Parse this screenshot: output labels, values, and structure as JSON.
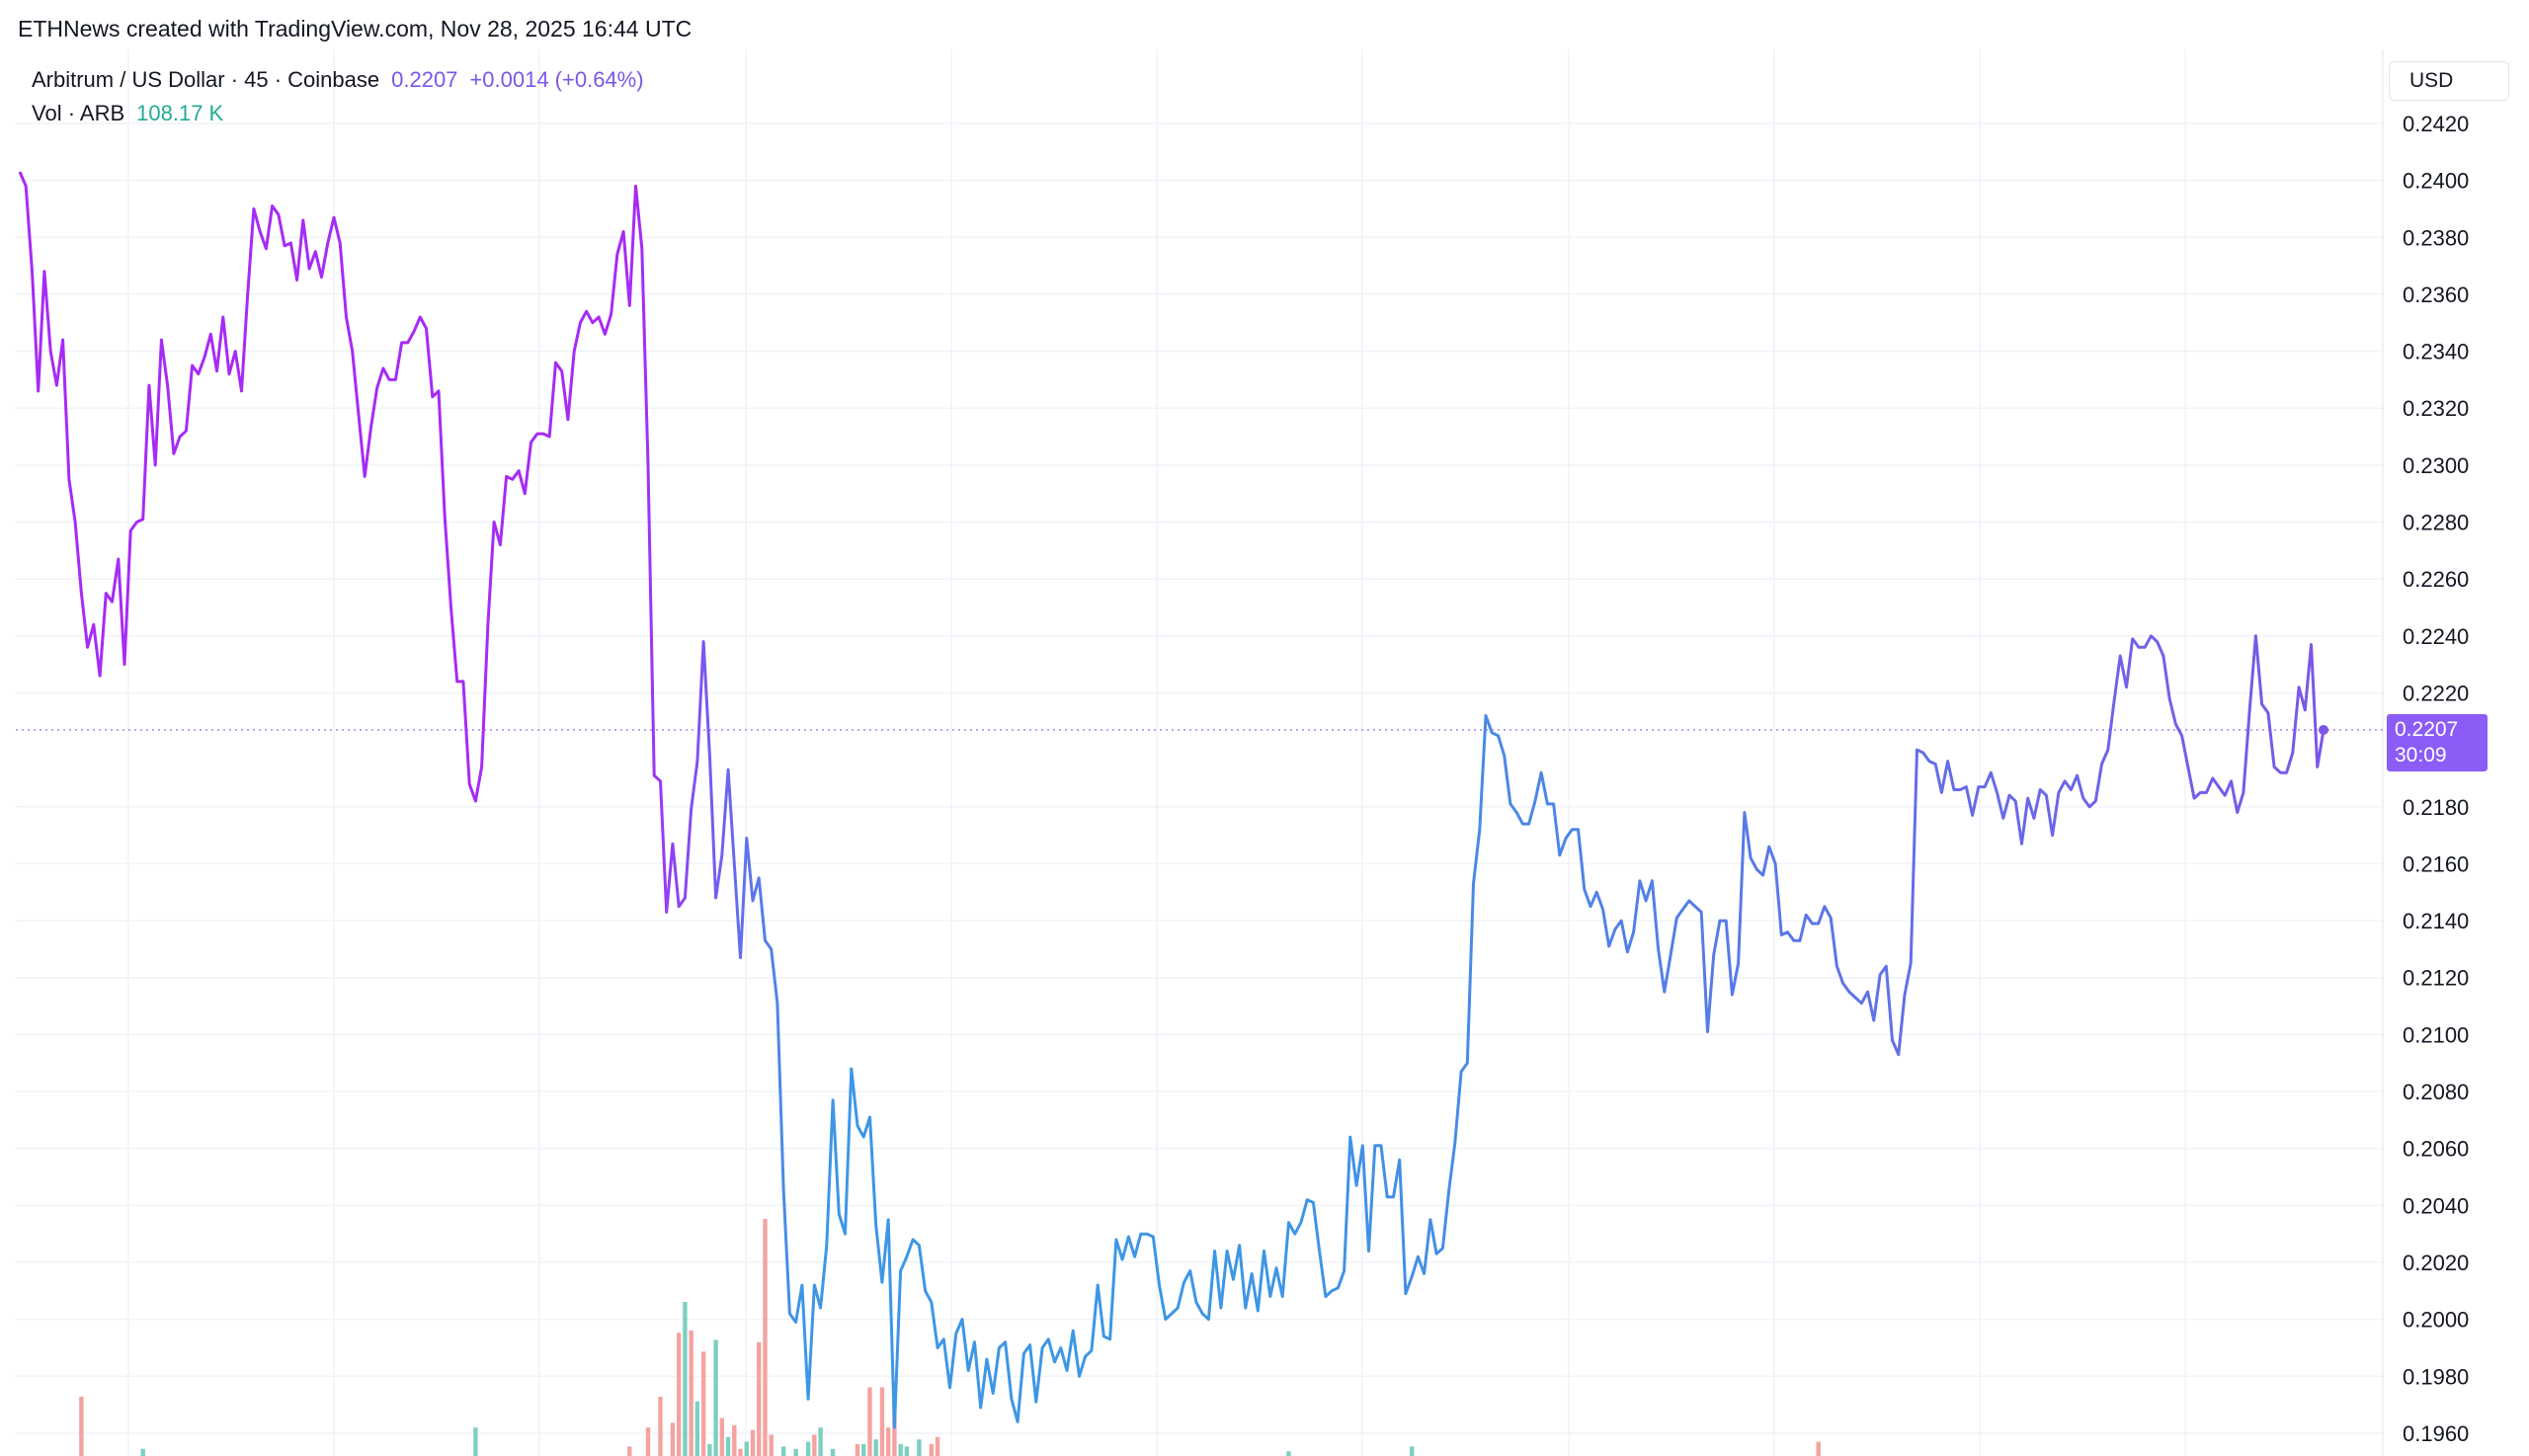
{
  "header": {
    "attribution": "ETHNews created with TradingView.com, Nov 28, 2025 16:44 UTC"
  },
  "legend": {
    "symbol": "Arbitrum / US Dollar · 45 · Coinbase",
    "price": "0.2207",
    "change": "+0.0014 (+0.64%)",
    "vol_label": "Vol · ARB",
    "vol_value": "108.17 K"
  },
  "scale": {
    "currency": "USD"
  },
  "last_price_tag": {
    "price": "0.2207",
    "countdown": "30:09"
  },
  "colors": {
    "price_line_start": "#a62bf5",
    "price_line_mid": "#3d96e6",
    "price_line_end": "#7b56e8",
    "volume_up": "#7ccfc1",
    "volume_down": "#f4a3a0",
    "grid": "#f0f3fa",
    "price_tag_bg": "#8b5cf6"
  },
  "chart_data": {
    "type": "line",
    "title": "",
    "xlabel": "",
    "ylabel": "",
    "ylim": [
      0.1952,
      0.2446
    ],
    "yticks": [
      "0.2420",
      "0.2400",
      "0.2380",
      "0.2360",
      "0.2340",
      "0.2320",
      "0.2300",
      "0.2280",
      "0.2260",
      "0.2240",
      "0.2220",
      "0.2180",
      "0.2160",
      "0.2140",
      "0.2120",
      "0.2100",
      "0.2080",
      "0.2060",
      "0.2040",
      "0.2020",
      "0.2000",
      "0.1980",
      "0.1960"
    ],
    "grid": true,
    "series": [
      {
        "values": [
          0.2403,
          0.2398,
          0.2368,
          0.2326,
          0.2368,
          0.234,
          0.2328,
          0.2344,
          0.2295,
          0.228,
          0.2255,
          0.2236,
          0.2244,
          0.2226,
          0.2255,
          0.2252,
          0.2267,
          0.223,
          0.2277,
          0.228,
          0.2281,
          0.2328,
          0.23,
          0.2344,
          0.2328,
          0.2304,
          0.231,
          0.2312,
          0.2335,
          0.2332,
          0.2338,
          0.2346,
          0.2333,
          0.2352,
          0.2332,
          0.234,
          0.2326,
          0.236,
          0.239,
          0.2382,
          0.2376,
          0.2391,
          0.2388,
          0.2377,
          0.2378,
          0.2365,
          0.2386,
          0.2369,
          0.2375,
          0.2366,
          0.2378,
          0.2387,
          0.2378,
          0.2352,
          0.234,
          0.2318,
          0.2296,
          0.2313,
          0.2327,
          0.2334,
          0.233,
          0.233,
          0.2343,
          0.2343,
          0.2347,
          0.2352,
          0.2348,
          0.2324,
          0.2326,
          0.2282,
          0.225,
          0.2224,
          0.2224,
          0.2188,
          0.2182,
          0.2194,
          0.2244,
          0.228,
          0.2272,
          0.2296,
          0.2295,
          0.2298,
          0.229,
          0.2308,
          0.2311,
          0.2311,
          0.231,
          0.2336,
          0.2333,
          0.2316,
          0.234,
          0.235,
          0.2354,
          0.235,
          0.2352,
          0.2346,
          0.2353,
          0.2374,
          0.2382,
          0.2356,
          0.2398,
          0.2376,
          0.23,
          0.2191,
          0.2189,
          0.2143,
          0.2167,
          0.2145,
          0.2148,
          0.2179,
          0.2196,
          0.2238,
          0.2198,
          0.2148,
          0.2163,
          0.2193,
          0.216,
          0.2127,
          0.2169,
          0.2147,
          0.2155,
          0.2133,
          0.213,
          0.2111,
          0.2045,
          0.2002,
          0.1999,
          0.2012,
          0.1972,
          0.2012,
          0.2004,
          0.2026,
          0.2077,
          0.2037,
          0.203,
          0.2088,
          0.2068,
          0.2064,
          0.2071,
          0.2033,
          0.2013,
          0.2035,
          0.1962,
          0.2017,
          0.2022,
          0.2028,
          0.2026,
          0.201,
          0.2006,
          0.199,
          0.1993,
          0.1976,
          0.1995,
          0.2,
          0.1982,
          0.1992,
          0.1969,
          0.1986,
          0.1974,
          0.199,
          0.1992,
          0.1972,
          0.1964,
          0.1988,
          0.1991,
          0.1971,
          0.199,
          0.1993,
          0.1985,
          0.199,
          0.1982,
          0.1996,
          0.198,
          0.1987,
          0.1989,
          0.2012,
          0.1994,
          0.1993,
          0.2028,
          0.2021,
          0.2029,
          0.2022,
          0.203,
          0.203,
          0.2029,
          0.2012,
          0.2,
          0.2002,
          0.2004,
          0.2013,
          0.2017,
          0.2006,
          0.2002,
          0.2,
          0.2024,
          0.2004,
          0.2024,
          0.2014,
          0.2026,
          0.2004,
          0.2016,
          0.2003,
          0.2024,
          0.2008,
          0.2018,
          0.2008,
          0.2034,
          0.203,
          0.2034,
          0.2042,
          0.2041,
          0.2024,
          0.2008,
          0.201,
          0.2011,
          0.2017,
          0.2064,
          0.2047,
          0.2061,
          0.2024,
          0.2061,
          0.2061,
          0.2043,
          0.2043,
          0.2056,
          0.2009,
          0.2015,
          0.2022,
          0.2016,
          0.2035,
          0.2023,
          0.2025,
          0.2045,
          0.2062,
          0.2087,
          0.209,
          0.2153,
          0.2172,
          0.2212,
          0.2206,
          0.2205,
          0.2198,
          0.2181,
          0.2178,
          0.2174,
          0.2174,
          0.2182,
          0.2192,
          0.2181,
          0.2181,
          0.2163,
          0.2169,
          0.2172,
          0.2172,
          0.2151,
          0.2145,
          0.215,
          0.2144,
          0.2131,
          0.2137,
          0.214,
          0.2129,
          0.2136,
          0.2154,
          0.2147,
          0.2154,
          0.213,
          0.2115,
          0.2128,
          0.2141,
          0.2144,
          0.2147,
          0.2145,
          0.2143,
          0.2101,
          0.2128,
          0.214,
          0.214,
          0.2114,
          0.2125,
          0.2178,
          0.2162,
          0.2158,
          0.2156,
          0.2166,
          0.216,
          0.2135,
          0.2136,
          0.2133,
          0.2133,
          0.2142,
          0.2139,
          0.2139,
          0.2145,
          0.2141,
          0.2124,
          0.2118,
          0.2115,
          0.2113,
          0.2111,
          0.2115,
          0.2105,
          0.2121,
          0.2124,
          0.2098,
          0.2093,
          0.2114,
          0.2125,
          0.22,
          0.2199,
          0.2196,
          0.2195,
          0.2185,
          0.2196,
          0.2186,
          0.2186,
          0.2187,
          0.2177,
          0.2187,
          0.2187,
          0.2192,
          0.2185,
          0.2176,
          0.2184,
          0.2182,
          0.2167,
          0.2183,
          0.2176,
          0.2186,
          0.2184,
          0.217,
          0.2185,
          0.2189,
          0.2186,
          0.2191,
          0.2183,
          0.218,
          0.2182,
          0.2195,
          0.22,
          0.2217,
          0.2233,
          0.2222,
          0.2239,
          0.2236,
          0.2236,
          0.224,
          0.2238,
          0.2233,
          0.2218,
          0.2209,
          0.2205,
          0.2194,
          0.2183,
          0.2185,
          0.2185,
          0.219,
          0.2187,
          0.2184,
          0.2189,
          0.2178,
          0.2185,
          0.2214,
          0.224,
          0.2216,
          0.2213,
          0.2194,
          0.2192,
          0.2192,
          0.2199,
          0.2222,
          0.2214,
          0.2237,
          0.2194,
          0.2207
        ]
      }
    ],
    "volume": {
      "series_name": "Vol · ARB",
      "bars": [
        {
          "i": 10,
          "v": 0.25,
          "up": false
        },
        {
          "i": 20,
          "v": 0.03,
          "up": true
        },
        {
          "i": 74,
          "v": 0.12,
          "up": true
        },
        {
          "i": 99,
          "v": 0.04,
          "up": false
        },
        {
          "i": 102,
          "v": 0.12,
          "up": false
        },
        {
          "i": 104,
          "v": 0.25,
          "up": false
        },
        {
          "i": 106,
          "v": 0.14,
          "up": false
        },
        {
          "i": 107,
          "v": 0.52,
          "up": false
        },
        {
          "i": 108,
          "v": 0.65,
          "up": true
        },
        {
          "i": 109,
          "v": 0.53,
          "up": false
        },
        {
          "i": 110,
          "v": 0.23,
          "up": true
        },
        {
          "i": 111,
          "v": 0.44,
          "up": false
        },
        {
          "i": 112,
          "v": 0.05,
          "up": true
        },
        {
          "i": 113,
          "v": 0.49,
          "up": true
        },
        {
          "i": 114,
          "v": 0.16,
          "up": false
        },
        {
          "i": 115,
          "v": 0.08,
          "up": true
        },
        {
          "i": 116,
          "v": 0.13,
          "up": false
        },
        {
          "i": 117,
          "v": 0.03,
          "up": false
        },
        {
          "i": 118,
          "v": 0.06,
          "up": true
        },
        {
          "i": 119,
          "v": 0.11,
          "up": false
        },
        {
          "i": 120,
          "v": 0.48,
          "up": false
        },
        {
          "i": 121,
          "v": 1.0,
          "up": false
        },
        {
          "i": 122,
          "v": 0.09,
          "up": false
        },
        {
          "i": 124,
          "v": 0.04,
          "up": true
        },
        {
          "i": 126,
          "v": 0.03,
          "up": true
        },
        {
          "i": 128,
          "v": 0.06,
          "up": true
        },
        {
          "i": 129,
          "v": 0.09,
          "up": false
        },
        {
          "i": 130,
          "v": 0.12,
          "up": true
        },
        {
          "i": 132,
          "v": 0.03,
          "up": true
        },
        {
          "i": 136,
          "v": 0.05,
          "up": false
        },
        {
          "i": 137,
          "v": 0.05,
          "up": true
        },
        {
          "i": 138,
          "v": 0.29,
          "up": false
        },
        {
          "i": 139,
          "v": 0.07,
          "up": true
        },
        {
          "i": 140,
          "v": 0.29,
          "up": false
        },
        {
          "i": 141,
          "v": 0.12,
          "up": false
        },
        {
          "i": 142,
          "v": 0.25,
          "up": false
        },
        {
          "i": 143,
          "v": 0.05,
          "up": true
        },
        {
          "i": 144,
          "v": 0.04,
          "up": true
        },
        {
          "i": 146,
          "v": 0.07,
          "up": true
        },
        {
          "i": 148,
          "v": 0.05,
          "up": false
        },
        {
          "i": 149,
          "v": 0.08,
          "up": false
        },
        {
          "i": 206,
          "v": 0.02,
          "up": true
        },
        {
          "i": 226,
          "v": 0.04,
          "up": true
        },
        {
          "i": 292,
          "v": 0.06,
          "up": false
        }
      ]
    }
  }
}
